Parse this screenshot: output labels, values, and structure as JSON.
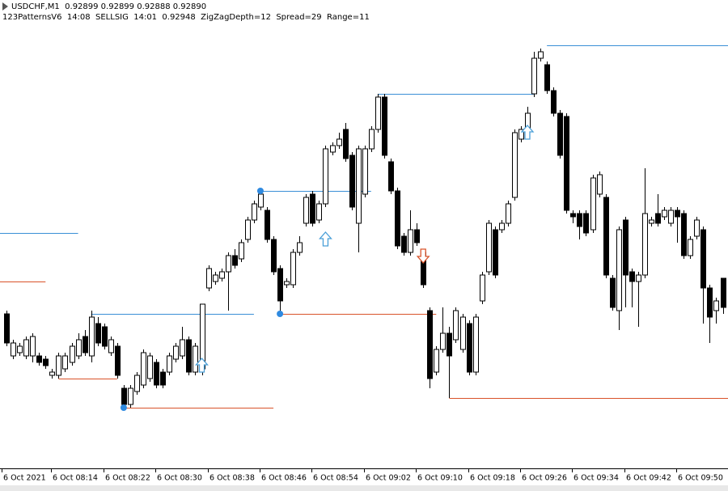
{
  "chart_data": {
    "type": "candlestick",
    "title": "USDCHF,M1  0.92899 0.92899 0.92888 0.92890",
    "subtitle": "123PatternsV6  14:08  SELLSIG  14:01  0.92948  ZigZagDepth=12  Spread=29  Range=11",
    "ylim": [
      0.9284,
      0.92985
    ],
    "up_color": "#ffffff",
    "down_color": "#000000",
    "wick_color": "#000000",
    "categories": [
      "6 Oct 2021",
      null,
      null,
      null,
      null,
      null,
      null,
      "6 Oct 08:14",
      null,
      null,
      null,
      null,
      null,
      null,
      null,
      "6 Oct 08:22",
      null,
      null,
      null,
      null,
      null,
      null,
      null,
      "6 Oct 08:30",
      null,
      null,
      null,
      null,
      null,
      null,
      null,
      "6 Oct 08:38",
      null,
      null,
      null,
      null,
      null,
      null,
      null,
      "6 Oct 08:46",
      null,
      null,
      null,
      null,
      null,
      null,
      null,
      "6 Oct 08:54",
      null,
      null,
      null,
      null,
      null,
      null,
      null,
      "6 Oct 09:02",
      null,
      null,
      null,
      null,
      null,
      null,
      null,
      "6 Oct 09:10",
      null,
      null,
      null,
      null,
      null,
      null,
      null,
      "6 Oct 09:18",
      null,
      null,
      null,
      null,
      null,
      null,
      null,
      "6 Oct 09:26",
      null,
      null,
      null,
      null,
      null,
      null,
      null,
      "6 Oct 09:34",
      null,
      null,
      null,
      null,
      null,
      null,
      null,
      "6 Oct 09:42",
      null,
      null,
      null,
      null,
      null,
      null,
      null,
      "6 Oct 09:50",
      null,
      null,
      null,
      null,
      null,
      null,
      null
    ],
    "candles": [
      [
        0.92888,
        0.92889,
        0.92878,
        0.92879
      ],
      [
        0.92875,
        0.9288,
        0.92874,
        0.92879
      ],
      [
        0.92876,
        0.92879,
        0.92875,
        0.92878
      ],
      [
        0.92875,
        0.92881,
        0.92874,
        0.9288
      ],
      [
        0.92875,
        0.92882,
        0.92873,
        0.92881
      ],
      [
        0.92875,
        0.92876,
        0.92872,
        0.92873
      ],
      [
        0.92874,
        0.92875,
        0.92871,
        0.92872
      ],
      [
        0.92869,
        0.92871,
        0.92868,
        0.9287
      ],
      [
        0.92869,
        0.92876,
        0.92868,
        0.92875
      ],
      [
        0.92871,
        0.92876,
        0.9287,
        0.92875
      ],
      [
        0.92873,
        0.92879,
        0.92872,
        0.92878
      ],
      [
        0.92875,
        0.92882,
        0.92874,
        0.9288
      ],
      [
        0.92881,
        0.92883,
        0.92875,
        0.92876
      ],
      [
        0.92875,
        0.92889,
        0.92873,
        0.92887
      ],
      [
        0.92885,
        0.92887,
        0.92878,
        0.92879
      ],
      [
        0.92884,
        0.92885,
        0.92877,
        0.92878
      ],
      [
        0.92876,
        0.92881,
        0.92875,
        0.9288
      ],
      [
        0.92878,
        0.92879,
        0.92868,
        0.92869
      ],
      [
        0.92865,
        0.92866,
        0.92859,
        0.9286
      ],
      [
        0.9286,
        0.92866,
        0.92859,
        0.92865
      ],
      [
        0.92864,
        0.9287,
        0.92863,
        0.92869
      ],
      [
        0.92866,
        0.92877,
        0.92865,
        0.92876
      ],
      [
        0.92868,
        0.92876,
        0.92867,
        0.92875
      ],
      [
        0.92873,
        0.92874,
        0.92865,
        0.92866
      ],
      [
        0.9287,
        0.92871,
        0.92865,
        0.92866
      ],
      [
        0.9287,
        0.92876,
        0.92869,
        0.92875
      ],
      [
        0.92874,
        0.92879,
        0.92873,
        0.92878
      ],
      [
        0.92875,
        0.92884,
        0.92874,
        0.9288
      ],
      [
        0.9288,
        0.92881,
        0.92869,
        0.9287
      ],
      [
        0.9287,
        0.92879,
        0.92869,
        0.92878
      ],
      [
        0.92871,
        0.92891,
        0.92869,
        0.92891
      ],
      [
        0.92896,
        0.92903,
        0.92895,
        0.92902
      ],
      [
        0.92898,
        0.92901,
        0.92897,
        0.929
      ],
      [
        0.92899,
        0.92902,
        0.92898,
        0.92901
      ],
      [
        0.92901,
        0.92907,
        0.92889,
        0.92906
      ],
      [
        0.92906,
        0.92908,
        0.92902,
        0.92903
      ],
      [
        0.92905,
        0.92911,
        0.92904,
        0.9291
      ],
      [
        0.92911,
        0.92918,
        0.9291,
        0.92917
      ],
      [
        0.92917,
        0.92923,
        0.92916,
        0.92922
      ],
      [
        0.92921,
        0.92926,
        0.9292,
        0.92925
      ],
      [
        0.9292,
        0.92921,
        0.9291,
        0.92911
      ],
      [
        0.92911,
        0.92912,
        0.929,
        0.92901
      ],
      [
        0.92902,
        0.92903,
        0.92888,
        0.92892
      ],
      [
        0.92897,
        0.92899,
        0.92896,
        0.92898
      ],
      [
        0.92897,
        0.92908,
        0.92896,
        0.92907
      ],
      [
        0.92907,
        0.92912,
        0.92906,
        0.9291
      ],
      [
        0.92916,
        0.92925,
        0.92915,
        0.92924
      ],
      [
        0.92925,
        0.92926,
        0.92915,
        0.92916
      ],
      [
        0.92917,
        0.92923,
        0.92916,
        0.92922
      ],
      [
        0.92922,
        0.9294,
        0.92921,
        0.92939
      ],
      [
        0.92938,
        0.92941,
        0.92937,
        0.9294
      ],
      [
        0.9294,
        0.92944,
        0.92939,
        0.92942
      ],
      [
        0.92945,
        0.92947,
        0.92935,
        0.92936
      ],
      [
        0.92937,
        0.92938,
        0.9292,
        0.92921
      ],
      [
        0.92916,
        0.9294,
        0.92907,
        0.92939
      ],
      [
        0.92925,
        0.9294,
        0.92924,
        0.92939
      ],
      [
        0.92939,
        0.92946,
        0.92938,
        0.92945
      ],
      [
        0.92945,
        0.92956,
        0.92944,
        0.92955
      ],
      [
        0.92955,
        0.92956,
        0.92936,
        0.92937
      ],
      [
        0.92935,
        0.92936,
        0.92925,
        0.92926
      ],
      [
        0.92926,
        0.92927,
        0.92908,
        0.92909
      ],
      [
        0.92912,
        0.92913,
        0.92906,
        0.92907
      ],
      [
        0.92907,
        0.9292,
        0.92906,
        0.92914
      ],
      [
        0.92914,
        0.92916,
        0.92909,
        0.9291
      ],
      [
        0.92907,
        0.92908,
        0.92896,
        0.92897
      ],
      [
        0.92889,
        0.9289,
        0.92865,
        0.92868
      ],
      [
        0.9287,
        0.92878,
        0.92869,
        0.92877
      ],
      [
        0.92877,
        0.9289,
        0.92876,
        0.92882
      ],
      [
        0.92882,
        0.92884,
        0.92862,
        0.92875
      ],
      [
        0.9288,
        0.9289,
        0.92879,
        0.92889
      ],
      [
        0.92877,
        0.92888,
        0.92876,
        0.92887
      ],
      [
        0.92885,
        0.92886,
        0.92869,
        0.9287
      ],
      [
        0.9287,
        0.92888,
        0.92869,
        0.92887
      ],
      [
        0.92892,
        0.92901,
        0.92891,
        0.929
      ],
      [
        0.92901,
        0.92917,
        0.929,
        0.92916
      ],
      [
        0.92914,
        0.92915,
        0.92899,
        0.929
      ],
      [
        0.92914,
        0.92917,
        0.92913,
        0.92916
      ],
      [
        0.92916,
        0.92923,
        0.92915,
        0.92922
      ],
      [
        0.92924,
        0.92945,
        0.92923,
        0.92944
      ],
      [
        0.92942,
        0.92946,
        0.92941,
        0.92945
      ],
      [
        0.92945,
        0.92952,
        0.92944,
        0.9295
      ],
      [
        0.92956,
        0.92969,
        0.92955,
        0.92967
      ],
      [
        0.92967,
        0.9297,
        0.92966,
        0.92969
      ],
      [
        0.92965,
        0.92966,
        0.92956,
        0.92957
      ],
      [
        0.92957,
        0.92958,
        0.92949,
        0.9295
      ],
      [
        0.9295,
        0.92951,
        0.92936,
        0.92937
      ],
      [
        0.92949,
        0.9295,
        0.92919,
        0.9292
      ],
      [
        0.92919,
        0.9292,
        0.92916,
        0.92918
      ],
      [
        0.92919,
        0.9292,
        0.92911,
        0.92915
      ],
      [
        0.92919,
        0.9292,
        0.92912,
        0.92913
      ],
      [
        0.92914,
        0.92931,
        0.92913,
        0.9293
      ],
      [
        0.92925,
        0.92932,
        0.92924,
        0.92931
      ],
      [
        0.92924,
        0.92925,
        0.92899,
        0.929
      ],
      [
        0.92899,
        0.929,
        0.92889,
        0.9289
      ],
      [
        0.92889,
        0.92915,
        0.92883,
        0.92914
      ],
      [
        0.92917,
        0.92918,
        0.9289,
        0.929
      ],
      [
        0.92901,
        0.92902,
        0.9289,
        0.92898
      ],
      [
        0.92898,
        0.92901,
        0.92884,
        0.929
      ],
      [
        0.929,
        0.92933,
        0.92899,
        0.92919
      ],
      [
        0.92916,
        0.92918,
        0.92915,
        0.92917
      ],
      [
        0.92919,
        0.92925,
        0.92915,
        0.92916
      ],
      [
        0.92918,
        0.92921,
        0.92917,
        0.9292
      ],
      [
        0.92916,
        0.92921,
        0.92915,
        0.9292
      ],
      [
        0.9292,
        0.92921,
        0.9291,
        0.92918
      ],
      [
        0.92919,
        0.9292,
        0.92905,
        0.92906
      ],
      [
        0.92906,
        0.92912,
        0.92905,
        0.92911
      ],
      [
        0.92912,
        0.92918,
        0.92911,
        0.92917
      ],
      [
        0.92914,
        0.92915,
        0.92885,
        0.92896
      ],
      [
        0.92896,
        0.92897,
        0.92879,
        0.92887
      ],
      [
        0.92889,
        0.92893,
        0.92885,
        0.92892
      ],
      [
        0.92899,
        0.92899,
        0.92888,
        0.9289
      ]
    ],
    "levels": [
      {
        "from": 0,
        "to": 11,
        "value": 0.92913,
        "color": "#3a8fd6"
      },
      {
        "from": 0,
        "to": 6,
        "value": 0.92898,
        "color": "#d9532a"
      },
      {
        "from": 13,
        "to": 38,
        "value": 0.92888,
        "color": "#3a8fd6"
      },
      {
        "from": 8,
        "to": 17,
        "value": 0.92868,
        "color": "#d9532a"
      },
      {
        "from": 18,
        "to": 41,
        "value": 0.92859,
        "color": "#d9532a"
      },
      {
        "from": 39,
        "to": 56,
        "value": 0.92926,
        "color": "#3a8fd6"
      },
      {
        "from": 42,
        "to": 66,
        "value": 0.92888,
        "color": "#d9532a"
      },
      {
        "from": 57,
        "to": 81,
        "value": 0.92956,
        "color": "#3a8fd6"
      },
      {
        "from": 68,
        "to": 110,
        "value": 0.92862,
        "color": "#d9532a"
      },
      {
        "from": 83,
        "to": 110,
        "value": 0.92971,
        "color": "#3a8fd6"
      }
    ],
    "points": [
      {
        "index": 18,
        "value": 0.92859,
        "color": "#2f8ae0"
      },
      {
        "index": 39,
        "value": 0.92926,
        "color": "#2f8ae0"
      },
      {
        "index": 42,
        "value": 0.92888,
        "color": "#2f8ae0"
      }
    ],
    "arrows": [
      {
        "index": 30,
        "value": 0.92872,
        "direction": "up",
        "color": "#4a9fd8"
      },
      {
        "index": 49,
        "value": 0.92911,
        "direction": "up",
        "color": "#4a9fd8"
      },
      {
        "index": 80,
        "value": 0.92944,
        "direction": "up",
        "color": "#4a9fd8"
      },
      {
        "index": 64,
        "value": 0.92906,
        "direction": "down",
        "color": "#d9532a"
      }
    ]
  }
}
